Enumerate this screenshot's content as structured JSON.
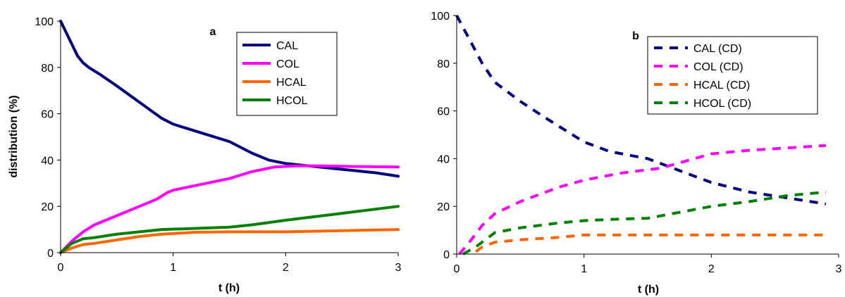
{
  "chart_data": [
    {
      "type": "line",
      "panel_label": "a",
      "xlabel": "t (h)",
      "ylabel": "distribution (%)",
      "xlim": [
        0,
        3
      ],
      "ylim": [
        0,
        100
      ],
      "xticks": [
        "0",
        "1",
        "2",
        "3"
      ],
      "yticks": [
        "0",
        "20",
        "40",
        "60",
        "80",
        "100"
      ],
      "grid": false,
      "legend_position": "top-right",
      "line_style": "solid",
      "series": [
        {
          "name": "CAL",
          "color": "#000080",
          "points": [
            [
              0,
              100
            ],
            [
              0.05,
              95
            ],
            [
              0.1,
              90
            ],
            [
              0.15,
              85
            ],
            [
              0.2,
              82
            ],
            [
              0.25,
              80
            ],
            [
              0.35,
              77
            ],
            [
              0.5,
              72
            ],
            [
              0.7,
              65
            ],
            [
              0.9,
              58
            ],
            [
              1.0,
              55.5
            ],
            [
              1.2,
              52.5
            ],
            [
              1.5,
              48
            ],
            [
              1.7,
              43
            ],
            [
              1.85,
              40
            ],
            [
              2.0,
              38.5
            ],
            [
              2.2,
              37.5
            ],
            [
              2.5,
              36
            ],
            [
              2.8,
              34.5
            ],
            [
              3.0,
              33
            ]
          ]
        },
        {
          "name": "COL",
          "color": "#ff00ff",
          "points": [
            [
              0,
              0
            ],
            [
              0.1,
              5
            ],
            [
              0.2,
              9
            ],
            [
              0.3,
              12
            ],
            [
              0.5,
              16
            ],
            [
              0.7,
              20
            ],
            [
              0.85,
              23
            ],
            [
              0.95,
              26
            ],
            [
              1.0,
              27
            ],
            [
              1.2,
              29
            ],
            [
              1.5,
              32
            ],
            [
              1.7,
              35
            ],
            [
              1.9,
              37
            ],
            [
              2.1,
              37.5
            ],
            [
              2.3,
              37.5
            ],
            [
              2.6,
              37.2
            ],
            [
              3.0,
              37
            ]
          ]
        },
        {
          "name": "HCAL",
          "color": "#ff6600",
          "points": [
            [
              0,
              0
            ],
            [
              0.1,
              2
            ],
            [
              0.2,
              3.5
            ],
            [
              0.3,
              4
            ],
            [
              0.5,
              5.5
            ],
            [
              0.7,
              7
            ],
            [
              0.9,
              8
            ],
            [
              1.2,
              8.8
            ],
            [
              1.5,
              9
            ],
            [
              2.0,
              9
            ],
            [
              2.5,
              9.5
            ],
            [
              3.0,
              10
            ]
          ]
        },
        {
          "name": "HCOL",
          "color": "#008000",
          "points": [
            [
              0,
              0
            ],
            [
              0.1,
              4
            ],
            [
              0.2,
              6
            ],
            [
              0.3,
              6.5
            ],
            [
              0.5,
              8
            ],
            [
              0.7,
              9
            ],
            [
              0.9,
              10
            ],
            [
              1.1,
              10.3
            ],
            [
              1.5,
              11
            ],
            [
              1.7,
              12
            ],
            [
              2.0,
              14
            ],
            [
              2.5,
              17
            ],
            [
              3.0,
              20
            ]
          ]
        }
      ]
    },
    {
      "type": "line",
      "panel_label": "b",
      "xlabel": "t (h)",
      "ylabel": "",
      "xlim": [
        0,
        3
      ],
      "ylim": [
        0,
        100
      ],
      "xticks": [
        "0",
        "1",
        "2",
        "3"
      ],
      "yticks": [
        "0",
        "20",
        "40",
        "60",
        "80",
        "100"
      ],
      "grid": false,
      "legend_position": "top-right",
      "line_style": "dashed",
      "series": [
        {
          "name": "CAL (CD)",
          "color": "#000080",
          "points": [
            [
              0,
              100
            ],
            [
              0.1,
              90
            ],
            [
              0.2,
              80
            ],
            [
              0.3,
              72
            ],
            [
              0.5,
              64
            ],
            [
              0.7,
              57
            ],
            [
              1.0,
              47
            ],
            [
              1.2,
              43
            ],
            [
              1.5,
              40
            ],
            [
              1.7,
              36
            ],
            [
              2.0,
              30
            ],
            [
              2.3,
              26
            ],
            [
              2.6,
              23.5
            ],
            [
              2.9,
              21
            ]
          ]
        },
        {
          "name": "COL (CD)",
          "color": "#ff00ff",
          "points": [
            [
              0.02,
              0
            ],
            [
              0.1,
              5
            ],
            [
              0.2,
              12
            ],
            [
              0.3,
              17
            ],
            [
              0.5,
              22
            ],
            [
              0.8,
              28
            ],
            [
              1.0,
              31
            ],
            [
              1.3,
              34
            ],
            [
              1.6,
              36
            ],
            [
              1.8,
              39
            ],
            [
              2.0,
              42
            ],
            [
              2.3,
              43.5
            ],
            [
              2.6,
              44.5
            ],
            [
              2.9,
              45.5
            ]
          ]
        },
        {
          "name": "HCAL (CD)",
          "color": "#ff6600",
          "points": [
            [
              0.15,
              1
            ],
            [
              0.2,
              3
            ],
            [
              0.3,
              5
            ],
            [
              0.5,
              6
            ],
            [
              0.8,
              7
            ],
            [
              1.0,
              8
            ],
            [
              1.2,
              8
            ],
            [
              1.5,
              8
            ],
            [
              2.0,
              8
            ],
            [
              2.5,
              8
            ],
            [
              2.9,
              8
            ]
          ]
        },
        {
          "name": "HCOL (CD)",
          "color": "#008000",
          "points": [
            [
              0.05,
              0
            ],
            [
              0.15,
              3
            ],
            [
              0.25,
              7
            ],
            [
              0.3,
              9
            ],
            [
              0.5,
              11
            ],
            [
              0.8,
              13
            ],
            [
              1.0,
              14
            ],
            [
              1.2,
              14.5
            ],
            [
              1.5,
              15
            ],
            [
              1.7,
              17
            ],
            [
              2.0,
              20
            ],
            [
              2.3,
              22
            ],
            [
              2.6,
              24.5
            ],
            [
              2.9,
              26
            ]
          ]
        }
      ]
    }
  ]
}
